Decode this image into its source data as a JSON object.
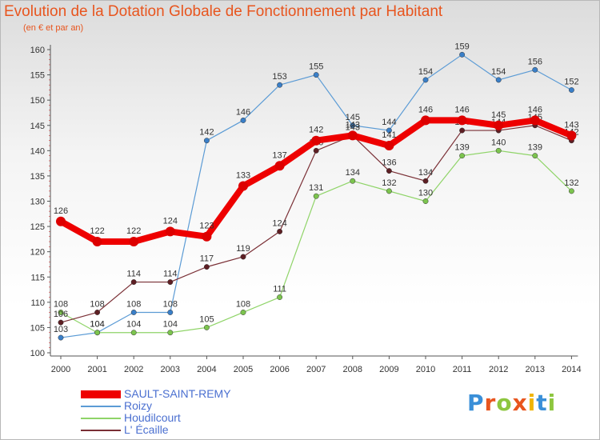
{
  "title": "Evolution de la Dotation Globale de Fonctionnement par Habitant",
  "subtitle": "(en € et par an)",
  "logo": {
    "letters": [
      {
        "char": "P",
        "color": "#3a8fd8"
      },
      {
        "char": "r",
        "color": "#e8551e"
      },
      {
        "char": "o",
        "color": "#8dc63f"
      },
      {
        "char": "x",
        "color": "#e8551e"
      },
      {
        "char": "i",
        "color": "#f0b400"
      },
      {
        "char": "t",
        "color": "#3a8fd8"
      },
      {
        "char": "i",
        "color": "#8dc63f"
      }
    ]
  },
  "chart_data": {
    "type": "line",
    "x": [
      "2000",
      "2001",
      "2002",
      "2003",
      "2004",
      "2005",
      "2006",
      "2007",
      "2008",
      "2009",
      "2010",
      "2011",
      "2012",
      "2013",
      "2014"
    ],
    "ylim": [
      100,
      160
    ],
    "yticks": [
      100,
      105,
      110,
      115,
      120,
      125,
      130,
      135,
      140,
      145,
      150,
      155,
      160
    ],
    "grid": false,
    "legend": "bottom-left",
    "series": [
      {
        "name": "Roizy",
        "color": "#5b9bd5",
        "dot": "#3a7fc8",
        "width": 1.2,
        "values": [
          103,
          104,
          108,
          108,
          142,
          146,
          153,
          155,
          145,
          144,
          154,
          159,
          154,
          156,
          152
        ]
      },
      {
        "name": "Houdilcourt",
        "color": "#8fd468",
        "dot": "#7cc44e",
        "width": 1.2,
        "values": [
          108,
          104,
          104,
          104,
          105,
          108,
          111,
          131,
          134,
          132,
          130,
          139,
          140,
          139,
          132
        ]
      },
      {
        "name": "L' Écaille",
        "color": "#7a2f35",
        "dot": "#5e1f24",
        "width": 1.2,
        "values": [
          106,
          108,
          114,
          114,
          117,
          119,
          124,
          140,
          143,
          136,
          134,
          144,
          144,
          145,
          142
        ]
      },
      {
        "name": "SAULT-SAINT-REMY",
        "color": "#ee0000",
        "dot": "#dd0000",
        "width": 8,
        "values": [
          126,
          122,
          122,
          124,
          123,
          133,
          137,
          142,
          143,
          141,
          146,
          146,
          145,
          146,
          143
        ]
      }
    ],
    "legend_order": [
      "SAULT-SAINT-REMY",
      "Roizy",
      "Houdilcourt",
      "L' Écaille"
    ]
  }
}
